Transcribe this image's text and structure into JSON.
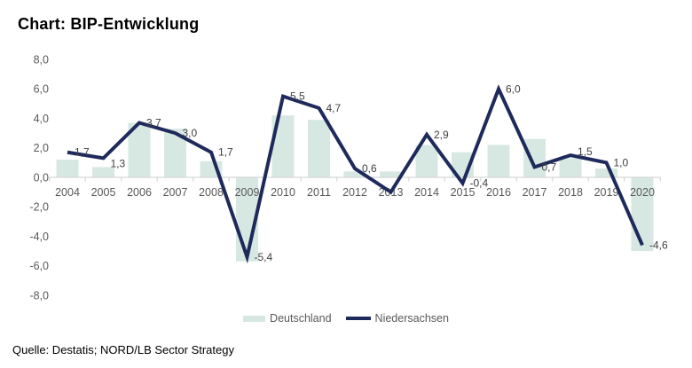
{
  "title": "Chart: BIP-Entwicklung",
  "source": "Quelle: Destatis; NORD/LB Sector Strategy",
  "legend": {
    "items": [
      {
        "label": "Deutschland",
        "type": "bar"
      },
      {
        "label": "Niedersachsen",
        "type": "line"
      }
    ]
  },
  "colors": {
    "bar": "#d7e8e3",
    "line": "#1f2a5c",
    "axis": "#d6d6d6",
    "axis_text": "#595959",
    "label_text": "#404040"
  },
  "chart_data": {
    "type": "bar",
    "subtype": "bar-and-line-combo",
    "categories": [
      "2004",
      "2005",
      "2006",
      "2007",
      "2008",
      "2009",
      "2010",
      "2011",
      "2012",
      "2013",
      "2014",
      "2015",
      "2016",
      "2017",
      "2018",
      "2019",
      "2020"
    ],
    "series": [
      {
        "name": "Deutschland",
        "type": "bar",
        "values": [
          1.2,
          0.7,
          3.7,
          3.3,
          1.1,
          -5.7,
          4.2,
          3.9,
          0.4,
          0.4,
          2.2,
          1.7,
          2.2,
          2.6,
          1.3,
          0.6,
          -5.0
        ]
      },
      {
        "name": "Niedersachsen",
        "type": "line",
        "values": [
          1.7,
          1.3,
          3.7,
          3.0,
          1.7,
          -5.4,
          5.5,
          4.7,
          0.6,
          -1.0,
          2.9,
          -0.4,
          6.0,
          0.7,
          1.5,
          1.0,
          -4.6
        ],
        "point_labels": [
          "1,7",
          "1,3",
          "3,7",
          "3,0",
          "1,7",
          "-5,4",
          "5,5",
          "4,7",
          "0,6",
          "",
          "2,9",
          "-0,4",
          "6,0",
          "0,7",
          "1,5",
          "1,0",
          "-4,6"
        ]
      }
    ],
    "title": "Chart: BIP-Entwicklung",
    "xlabel": "",
    "ylabel": "",
    "ylim": [
      -8,
      8
    ],
    "ytick_labels": [
      "8,0",
      "6,0",
      "4,0",
      "2,0",
      "0,0",
      "-2,0",
      "-4,0",
      "-6,0",
      "-8,0"
    ],
    "ytick_values": [
      8,
      6,
      4,
      2,
      0,
      -2,
      -4,
      -6,
      -8
    ],
    "grid": false,
    "legend_position": "bottom"
  }
}
